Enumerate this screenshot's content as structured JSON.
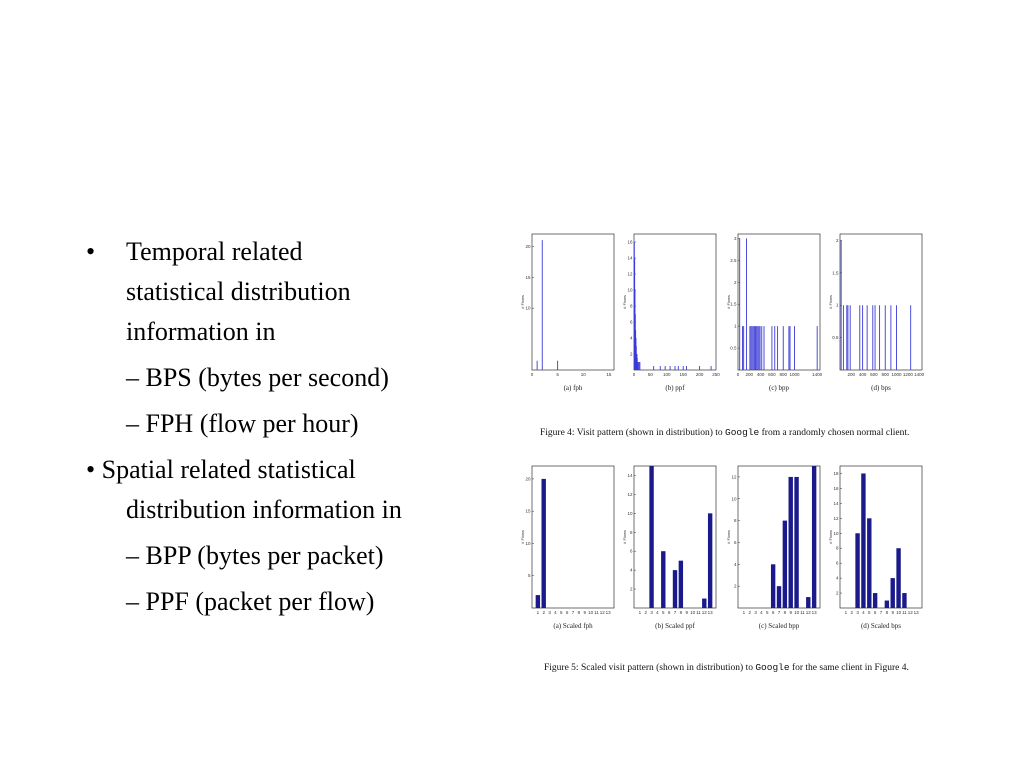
{
  "bullets": {
    "item1_line1": "Temporal related",
    "item1_line2": "statistical distribution",
    "item1_line3": "information in",
    "sub1": "– BPS (bytes per second)",
    "sub2": "– FPH (flow per hour)",
    "item2_line1": "• Spatial related statistical",
    "item2_line2": "distribution information in",
    "sub3": "– BPP (bytes per packet)",
    "sub4": "– PPF (packet per flow)",
    "bullet_glyph": "•"
  },
  "figure4": {
    "caption_prefix": "Figure 4: Visit pattern (shown in distribution) to ",
    "caption_mono": "Google",
    "caption_suffix": " from a randomly chosen normal client."
  },
  "figure5": {
    "caption_prefix": "Figure 5: Scaled visit pattern (shown in distribution) to ",
    "caption_mono": "Google",
    "caption_suffix": " for the same client in Figure 4."
  },
  "chart_data": [
    {
      "type": "bar",
      "title": "(a) fph",
      "ylabel": "# Flows",
      "xticks": [
        "0",
        "5",
        "10",
        "15"
      ],
      "xlim": [
        0,
        16
      ],
      "yticks": [
        "10",
        "15",
        "20"
      ],
      "ylim": [
        0,
        22
      ],
      "x": [
        1,
        2,
        5
      ],
      "values": [
        1.5,
        21,
        1.5
      ]
    },
    {
      "type": "bar",
      "title": "(b) ppf",
      "ylabel": "# Flows",
      "xticks": [
        "0",
        "50",
        "100",
        "150",
        "200",
        "250"
      ],
      "xlim": [
        0,
        250
      ],
      "yticks": [
        "2",
        "4",
        "6",
        "8",
        "10",
        "12",
        "14",
        "16"
      ],
      "ylim": [
        0,
        17
      ],
      "x": [
        1,
        2,
        3,
        4,
        5,
        6,
        7,
        8,
        9,
        10,
        12,
        15,
        18,
        60,
        80,
        95,
        110,
        125,
        135,
        150,
        160,
        200,
        235
      ],
      "values": [
        16,
        14,
        10,
        7,
        5,
        4,
        3,
        2,
        2,
        1.5,
        1,
        1,
        1,
        0.5,
        0.5,
        0.5,
        0.5,
        0.5,
        0.5,
        0.5,
        0.5,
        0.5,
        0.5
      ]
    },
    {
      "type": "bar",
      "title": "(c) bpp",
      "ylabel": "# Flows",
      "xticks": [
        "0",
        "200",
        "400",
        "600",
        "800",
        "1000",
        "1400"
      ],
      "xlim": [
        0,
        1450
      ],
      "yticks": [
        "0.5",
        "1",
        "1.5",
        "2",
        "2.5",
        "3"
      ],
      "ylim": [
        0,
        3.1
      ],
      "x": [
        30,
        80,
        100,
        150,
        210,
        230,
        250,
        270,
        290,
        310,
        330,
        350,
        370,
        390,
        420,
        460,
        600,
        650,
        700,
        800,
        900,
        920,
        1000,
        1400
      ],
      "values": [
        3,
        1,
        1,
        3,
        1,
        1,
        1,
        1,
        1,
        1,
        1,
        1,
        1,
        1,
        1,
        1,
        1,
        1,
        1,
        1,
        1,
        1,
        1,
        1
      ]
    },
    {
      "type": "bar",
      "title": "(d) bps",
      "ylabel": "# Flows",
      "xticks": [
        "200",
        "400",
        "600",
        "800",
        "1000",
        "1200",
        "1400"
      ],
      "xlim": [
        0,
        1450
      ],
      "yticks": [
        "0.5",
        "1",
        "1.5",
        "2"
      ],
      "ylim": [
        0,
        2.1
      ],
      "x": [
        20,
        60,
        120,
        140,
        180,
        350,
        400,
        480,
        580,
        620,
        700,
        800,
        900,
        1000,
        1250
      ],
      "values": [
        2,
        1,
        1,
        1,
        1,
        1,
        1,
        1,
        1,
        1,
        1,
        1,
        1,
        1,
        1
      ]
    },
    {
      "type": "bar",
      "title": "(a) Scaled fph",
      "ylabel": "# Flows",
      "categories": [
        "1",
        "2",
        "3",
        "4",
        "5",
        "6",
        "7",
        "8",
        "9",
        "10",
        "11",
        "12",
        "13"
      ],
      "yticks": [
        "5",
        "10",
        "15",
        "20"
      ],
      "ylim": [
        0,
        22
      ],
      "values": [
        2,
        20,
        0,
        0,
        0,
        0,
        0,
        0,
        0,
        0,
        0,
        0,
        0
      ]
    },
    {
      "type": "bar",
      "title": "(b) Scaled ppf",
      "ylabel": "# Flows",
      "categories": [
        "1",
        "2",
        "3",
        "4",
        "5",
        "6",
        "7",
        "8",
        "9",
        "10",
        "11",
        "12",
        "13"
      ],
      "yticks": [
        "2",
        "4",
        "6",
        "8",
        "10",
        "12",
        "14"
      ],
      "ylim": [
        0,
        15
      ],
      "values": [
        0,
        0,
        15,
        0,
        6,
        0,
        4,
        5,
        0,
        0,
        0,
        1,
        10
      ]
    },
    {
      "type": "bar",
      "title": "(c) Scaled bpp",
      "ylabel": "# Flows",
      "categories": [
        "1",
        "2",
        "3",
        "4",
        "5",
        "6",
        "7",
        "8",
        "9",
        "10",
        "11",
        "12",
        "13"
      ],
      "yticks": [
        "2",
        "4",
        "6",
        "8",
        "10",
        "12"
      ],
      "ylim": [
        0,
        13
      ],
      "values": [
        0,
        0,
        0,
        0,
        0,
        4,
        2,
        8,
        12,
        12,
        0,
        1,
        13
      ]
    },
    {
      "type": "bar",
      "title": "(d) Scaled bps",
      "ylabel": "# Flows",
      "categories": [
        "1",
        "2",
        "3",
        "4",
        "5",
        "6",
        "7",
        "8",
        "9",
        "10",
        "11",
        "12",
        "13"
      ],
      "yticks": [
        "2",
        "4",
        "6",
        "8",
        "10",
        "12",
        "14",
        "16",
        "18"
      ],
      "ylim": [
        0,
        19
      ],
      "values": [
        0,
        0,
        10,
        18,
        12,
        2,
        0,
        1,
        4,
        8,
        2,
        0,
        0
      ]
    }
  ],
  "colors": {
    "bar": "#1a1a8c",
    "axis": "#333333"
  }
}
